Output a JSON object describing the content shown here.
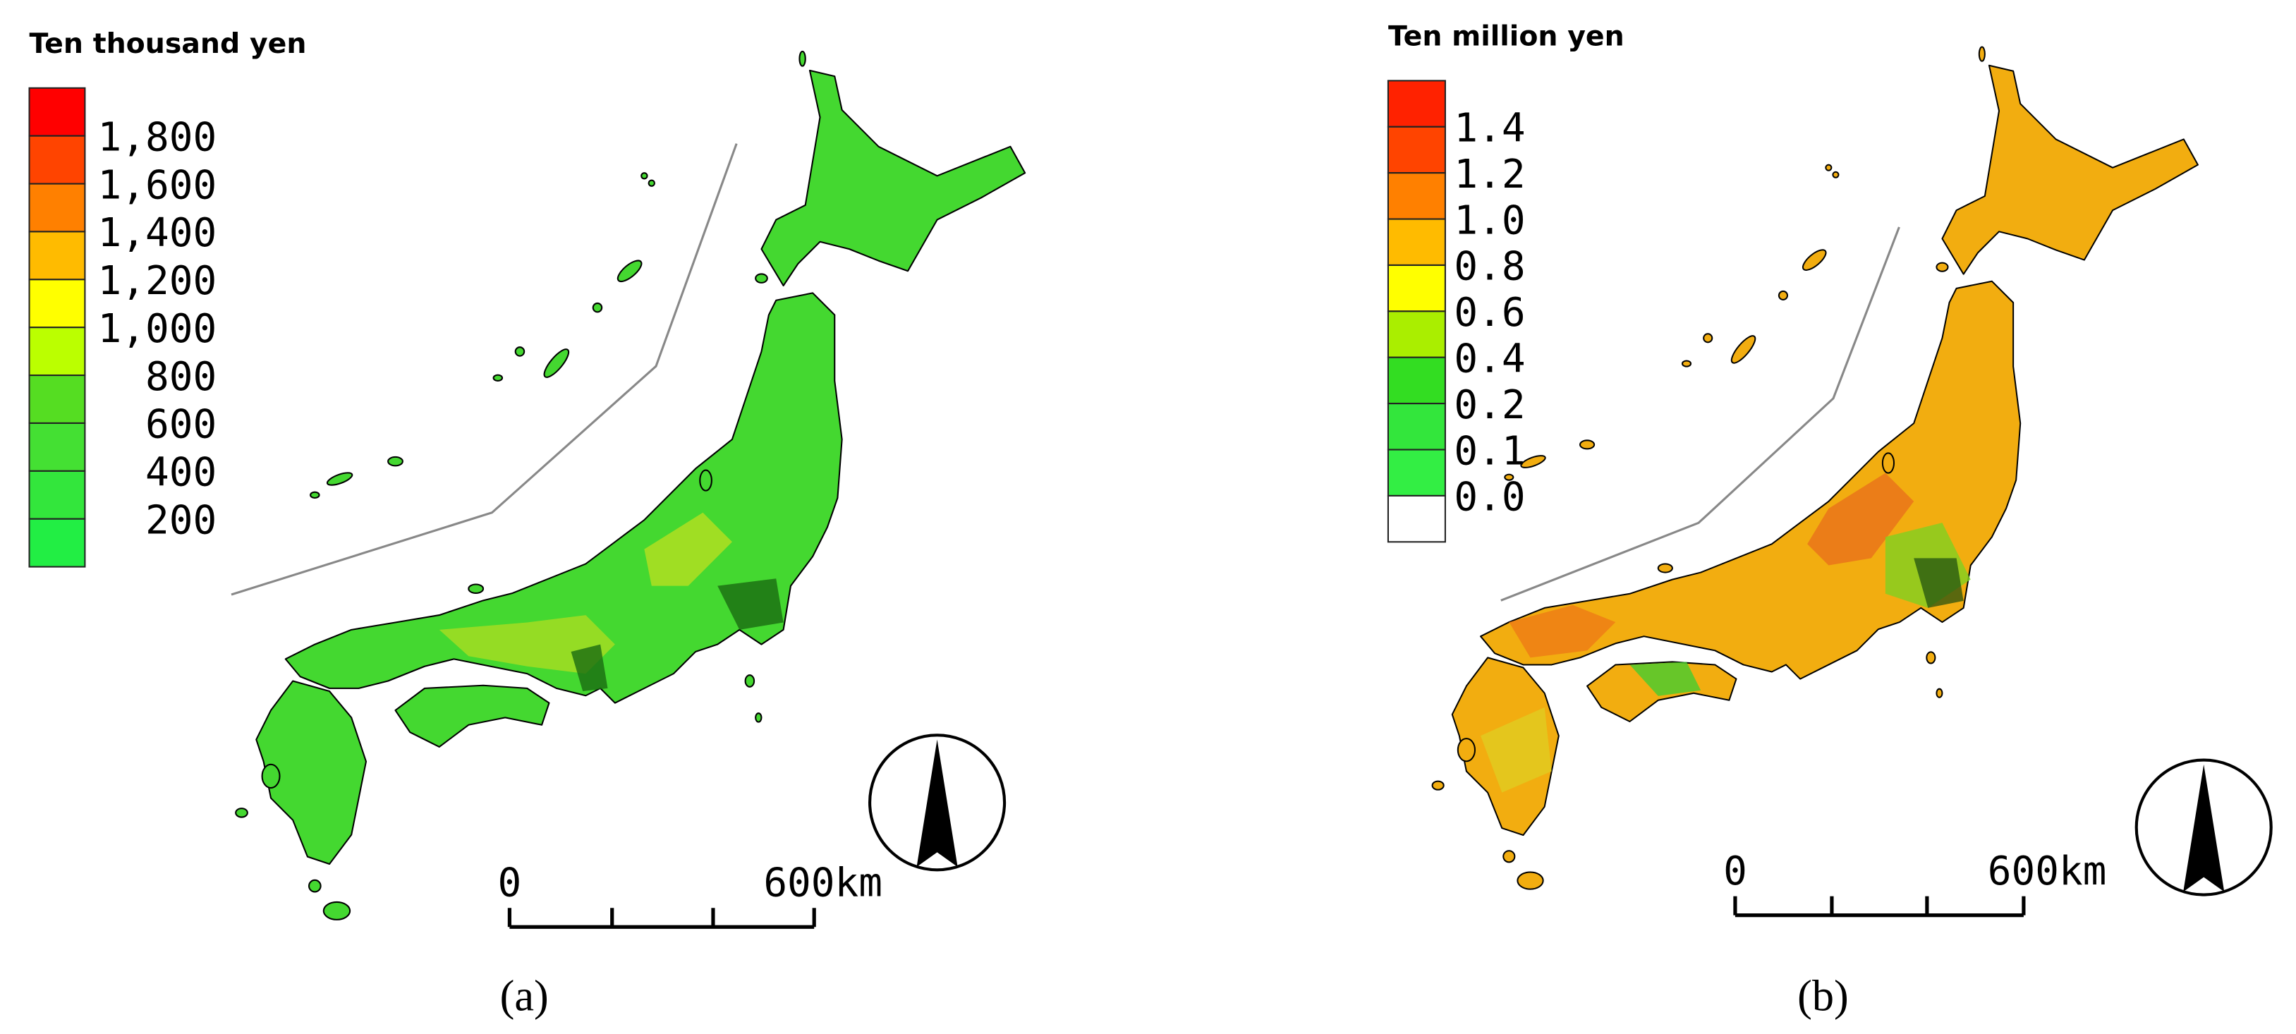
{
  "panels": [
    {
      "legend_title": "Ten thousand yen",
      "swatches": [
        "#ff0000",
        "#ff4400",
        "#ff8000",
        "#ffbb00",
        "#ffff00",
        "#bbff00",
        "#55dd22",
        "#44e033",
        "#33e63c",
        "#22ee44"
      ],
      "labels": [
        "1,800",
        "1,600",
        "1,400",
        "1,200",
        "1,000",
        "800",
        "600",
        "400",
        "200"
      ],
      "scale_labels": [
        "0",
        "600km"
      ],
      "caption": "(a)"
    },
    {
      "legend_title": "Ten million yen",
      "swatches": [
        "#ff2200",
        "#ff4400",
        "#ff8000",
        "#ffbb00",
        "#ffff00",
        "#aaee00",
        "#33dd22",
        "#33e63c",
        "#33ee44",
        "#ffffff"
      ],
      "labels": [
        "1.4",
        "1.2",
        "1.0",
        "0.8",
        "0.6",
        "0.4",
        "0.2",
        "0.1",
        "0.0"
      ],
      "scale_labels": [
        "0",
        "600km"
      ],
      "caption": "(b)"
    }
  ]
}
